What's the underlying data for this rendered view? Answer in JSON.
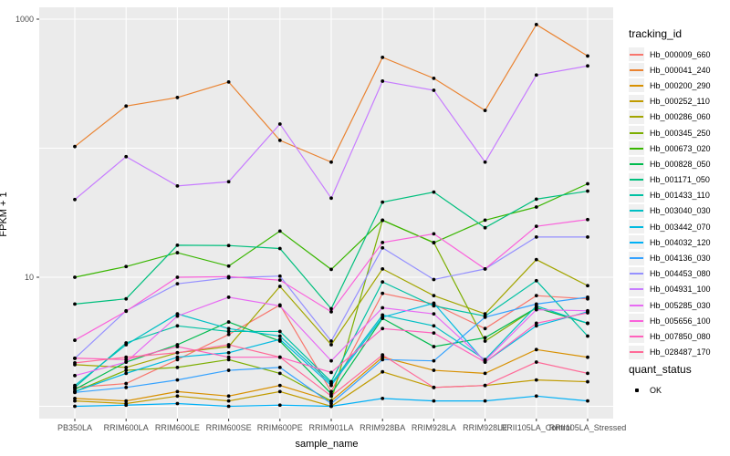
{
  "chart_data": {
    "type": "line",
    "title": "",
    "xlabel": "sample_name",
    "ylabel": "FPKM + 1",
    "y_scale": "log10",
    "ylim": [
      0.8,
      1250
    ],
    "y_tick_labels": [
      "10",
      "1000"
    ],
    "y_tick_values": [
      10,
      1000
    ],
    "y_gridline_values": [
      1,
      10,
      100,
      1000
    ],
    "grid": "major-only",
    "legend_position": "right",
    "panel_bg": "#EBEBEB",
    "grid_color": "#FFFFFF",
    "axis_text_color": "#4D4D4D",
    "point_color": "#000000",
    "legend_title": "tracking_id",
    "categories": [
      "PB350LA",
      "RRIM600LA",
      "RRIM600LE",
      "RRIM600SE",
      "RRIM600PE",
      "RRIM901LA",
      "RRIM928BA",
      "RRIM928LA",
      "RRIM928LE",
      "RRII105LA_Control",
      "RRII105LA_Stressed"
    ],
    "series": [
      {
        "name": "Hb_000009_660",
        "color": "#F8766D",
        "values": [
          1.4,
          1.5,
          2.3,
          3.6,
          6.1,
          1.3,
          7.5,
          6.2,
          4.0,
          7.2,
          6.8
        ]
      },
      {
        "name": "Hb_000041_240",
        "color": "#EA8331",
        "values": [
          103,
          212,
          247,
          326,
          115,
          78,
          506,
          348,
          196,
          908,
          518
        ]
      },
      {
        "name": "Hb_000200_290",
        "color": "#D89000",
        "values": [
          1.15,
          1.1,
          1.3,
          1.2,
          1.45,
          1.1,
          2.4,
          1.9,
          1.8,
          2.75,
          2.4
        ]
      },
      {
        "name": "Hb_000252_110",
        "color": "#C09B00",
        "values": [
          1.1,
          1.05,
          1.2,
          1.1,
          1.3,
          1.0,
          1.85,
          1.4,
          1.45,
          1.6,
          1.55
        ]
      },
      {
        "name": "Hb_000286_060",
        "color": "#A3A500",
        "values": [
          2.1,
          2.0,
          2.6,
          2.9,
          8.5,
          3.0,
          11.6,
          7.2,
          5.2,
          13.7,
          8.6
        ]
      },
      {
        "name": "Hb_000345_250",
        "color": "#7CAE00",
        "values": [
          1.3,
          1.9,
          2.0,
          2.3,
          1.8,
          1.1,
          27.6,
          18.6,
          3.2,
          5.8,
          4.4
        ]
      },
      {
        "name": "Hb_000673_020",
        "color": "#39B600",
        "values": [
          10,
          12.1,
          15.5,
          12.2,
          22.8,
          11.5,
          27.7,
          18.5,
          27.7,
          35,
          53
        ]
      },
      {
        "name": "Hb_000828_050",
        "color": "#00BB4E",
        "values": [
          1.35,
          2.2,
          3.0,
          4.5,
          3.2,
          1.25,
          4.8,
          2.9,
          3.4,
          5.8,
          4.4
        ]
      },
      {
        "name": "Hb_001171_050",
        "color": "#00BF7D",
        "values": [
          6.2,
          6.8,
          17.7,
          17.6,
          16.7,
          5.7,
          38.2,
          45.7,
          24.2,
          40.3,
          46.5
        ]
      },
      {
        "name": "Hb_001433_110",
        "color": "#00C1A3",
        "values": [
          1.4,
          3.1,
          4.2,
          3.8,
          3.8,
          1.55,
          9.2,
          6.0,
          5.0,
          9.4,
          3.5
        ]
      },
      {
        "name": "Hb_003040_030",
        "color": "#00BFC4",
        "values": [
          1.45,
          3.0,
          5.2,
          4.0,
          3.5,
          1.5,
          5.1,
          4.2,
          2.3,
          6.0,
          4.4
        ]
      },
      {
        "name": "Hb_003442_070",
        "color": "#00BAE0",
        "values": [
          1.3,
          1.8,
          2.4,
          2.6,
          3.3,
          1.45,
          4.9,
          6.3,
          2.2,
          4.2,
          5.4
        ]
      },
      {
        "name": "Hb_004032_120",
        "color": "#00B0F6",
        "values": [
          1.0,
          1.02,
          1.05,
          1.0,
          1.02,
          1.0,
          1.15,
          1.1,
          1.1,
          1.2,
          1.1
        ]
      },
      {
        "name": "Hb_004136_030",
        "color": "#35A2FF",
        "values": [
          1.28,
          1.4,
          1.6,
          1.9,
          2.0,
          1.05,
          2.3,
          2.25,
          4.9,
          6.2,
          7.0
        ]
      },
      {
        "name": "Hb_004453_080",
        "color": "#9590FF",
        "values": [
          2.35,
          5.5,
          8.9,
          9.9,
          10.2,
          3.2,
          16.9,
          9.6,
          11.6,
          20.5,
          20.5
        ]
      },
      {
        "name": "Hb_004931_100",
        "color": "#C77CFF",
        "values": [
          40,
          86,
          51,
          55,
          154,
          41,
          331,
          281,
          78,
          369,
          434
        ]
      },
      {
        "name": "Hb_005285_030",
        "color": "#E76BF3",
        "values": [
          1.73,
          2.2,
          5.0,
          7.0,
          6.0,
          2.25,
          5.8,
          5.2,
          2.25,
          5.6,
          5.5
        ]
      },
      {
        "name": "Hb_005656_100",
        "color": "#FA62DB",
        "values": [
          3.25,
          5.45,
          10.0,
          10.1,
          9.5,
          5.4,
          18.6,
          21.7,
          11.6,
          24.8,
          28
        ]
      },
      {
        "name": "Hb_007850_080",
        "color": "#FF62BC",
        "values": [
          2.36,
          2.3,
          2.9,
          2.4,
          2.4,
          1.83,
          4.0,
          3.7,
          2.2,
          4.4,
          5.3
        ]
      },
      {
        "name": "Hb_028487_170",
        "color": "#FF6A98",
        "values": [
          2.17,
          2.4,
          2.6,
          3.0,
          2.4,
          1.2,
          2.5,
          1.4,
          1.45,
          2.2,
          1.8
        ]
      }
    ],
    "quant_legend": {
      "title": "quant_status",
      "items": [
        {
          "label": "OK"
        }
      ]
    }
  }
}
